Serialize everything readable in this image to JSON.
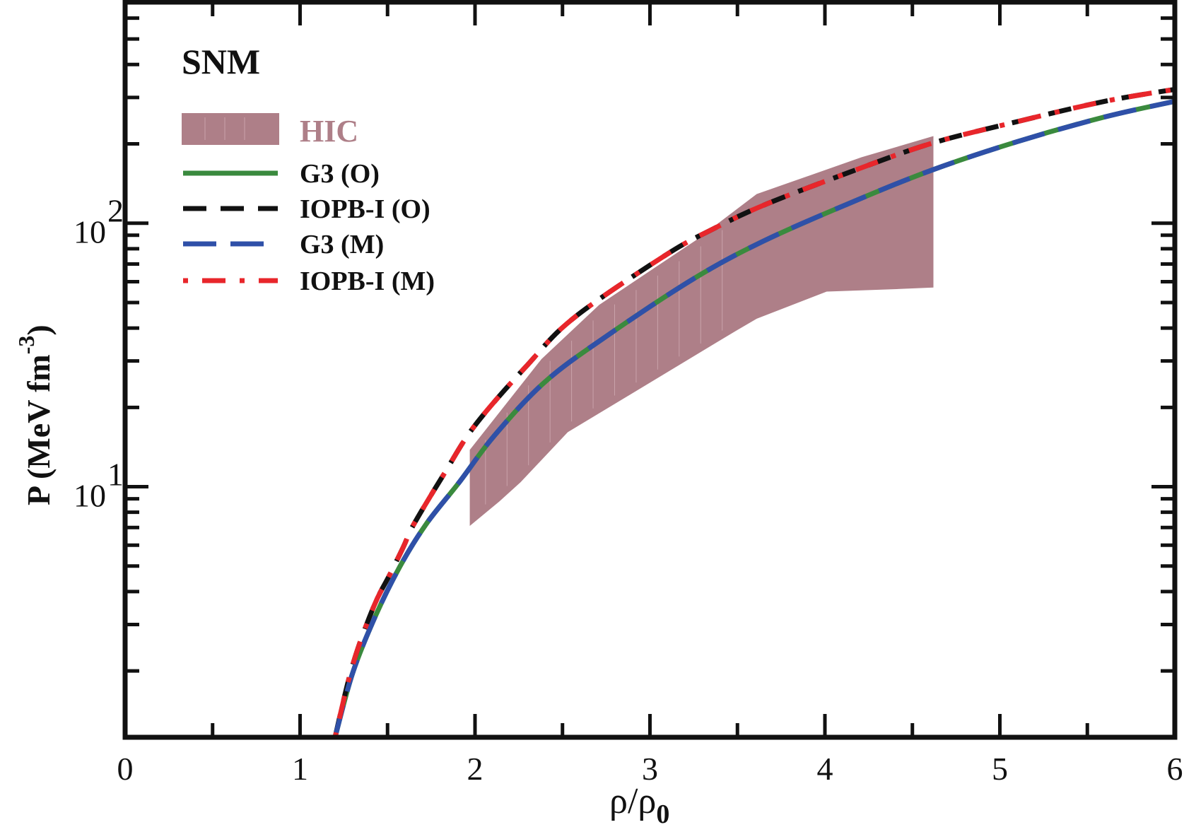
{
  "chart_data": {
    "type": "line",
    "title": "SNM",
    "xlabel": "ρ/ρ",
    "xlabel_subscript": "0",
    "ylabel": "P (MeV fm",
    "ylabel_superscript": "-3",
    "ylabel_close": ")",
    "xlim": [
      0,
      6
    ],
    "ylim": [
      1.12,
      690
    ],
    "yscale": "log",
    "grid": false,
    "legend_position": "top-left",
    "x_ticks": [
      {
        "value": 0,
        "label": "0"
      },
      {
        "value": 1,
        "label": "1"
      },
      {
        "value": 2,
        "label": "2"
      },
      {
        "value": 3,
        "label": "3"
      },
      {
        "value": 4,
        "label": "4"
      },
      {
        "value": 5,
        "label": "5"
      },
      {
        "value": 6,
        "label": "6"
      }
    ],
    "x_minor_ticks": [
      0.5,
      1.5,
      2.5,
      3.5,
      4.5,
      5.5
    ],
    "y_ticks": [
      {
        "value": 10,
        "base": "10",
        "exp": "1"
      },
      {
        "value": 100,
        "base": "10",
        "exp": "2"
      }
    ],
    "y_minor_ticks": [
      2,
      3,
      4,
      5,
      6,
      7,
      8,
      9,
      20,
      30,
      40,
      50,
      60,
      70,
      80,
      90,
      200,
      300,
      400,
      500,
      600
    ],
    "band": {
      "name": "HIC",
      "color": "#ae7f88",
      "upper": [
        [
          1.97,
          13.8
        ],
        [
          2.38,
          30.5
        ],
        [
          2.71,
          49
        ],
        [
          3.26,
          86
        ],
        [
          3.61,
          129
        ],
        [
          4.21,
          178
        ],
        [
          4.62,
          214
        ]
      ],
      "lower": [
        [
          1.97,
          7.1
        ],
        [
          2.14,
          8.8
        ],
        [
          2.26,
          10.4
        ],
        [
          2.53,
          16.1
        ],
        [
          3.49,
          39
        ],
        [
          3.61,
          43.4
        ],
        [
          4.01,
          55
        ],
        [
          4.41,
          56.2
        ],
        [
          4.62,
          57
        ]
      ]
    },
    "series": [
      {
        "name": "G3 (O)",
        "color": "#3a8a3e",
        "style": "solid",
        "x": [
          1.2,
          1.3,
          1.43,
          1.57,
          1.72,
          1.91,
          2.11,
          2.4,
          2.76,
          3.25,
          3.65,
          4.14,
          4.6,
          5.1,
          5.6,
          6.0
        ],
        "y": [
          1.12,
          1.96,
          3.22,
          4.97,
          7.2,
          10.4,
          15.6,
          25.0,
          37.6,
          61.6,
          85.6,
          119,
          158,
          204,
          253,
          290
        ]
      },
      {
        "name": "IOPB-I (O)",
        "color": "#111111",
        "style": "dashed",
        "x": [
          1.2,
          1.3,
          1.42,
          1.51,
          1.59,
          1.65,
          1.82,
          2.0,
          2.3,
          2.57,
          3.09,
          3.36,
          3.65,
          4.14,
          4.6,
          5.1,
          5.6,
          6.0
        ],
        "y": [
          1.12,
          2.1,
          3.5,
          4.6,
          5.9,
          7.2,
          11.1,
          17.1,
          29.0,
          44,
          75.7,
          95,
          117,
          156,
          200,
          243,
          290,
          322
        ]
      },
      {
        "name": "G3 (M)",
        "color": "#2f50a8",
        "style": "long-dashed",
        "x": [
          1.2,
          1.3,
          1.43,
          1.57,
          1.72,
          1.91,
          2.11,
          2.4,
          2.76,
          3.25,
          3.65,
          4.14,
          4.6,
          5.1,
          5.6,
          6.0
        ],
        "y": [
          1.12,
          1.96,
          3.22,
          4.97,
          7.2,
          10.4,
          15.6,
          25.0,
          37.6,
          61.6,
          85.6,
          119,
          158,
          204,
          253,
          290
        ]
      },
      {
        "name": "IOPB-I (M)",
        "color": "#e8262b",
        "style": "dash-dot",
        "x": [
          1.2,
          1.3,
          1.42,
          1.51,
          1.59,
          1.65,
          1.82,
          2.0,
          2.3,
          2.57,
          3.09,
          3.36,
          3.65,
          4.14,
          4.6,
          5.1,
          5.6,
          6.0
        ],
        "y": [
          1.12,
          2.1,
          3.5,
          4.6,
          5.9,
          7.2,
          11.1,
          17.1,
          29.0,
          44,
          75.7,
          95,
          117,
          156,
          200,
          243,
          290,
          322
        ]
      }
    ]
  }
}
